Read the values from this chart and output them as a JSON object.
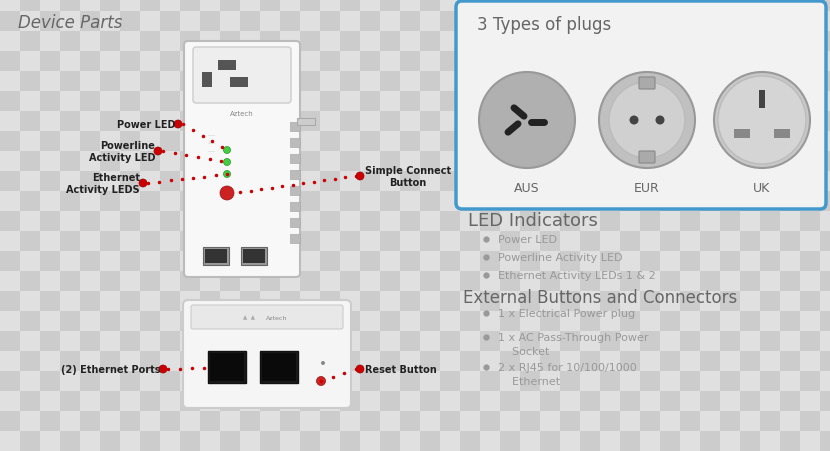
{
  "title": "Device Parts",
  "bg_checker_light": "#e0e0e0",
  "bg_checker_dark": "#cccccc",
  "text_color": "#999999",
  "text_dark": "#666666",
  "text_label": "#222222",
  "red_color": "#cc0000",
  "blue_border": "#4499cc",
  "plugs_title": "3 Types of plugs",
  "plug_labels": [
    "AUS",
    "EUR",
    "UK"
  ],
  "led_title": "LED Indicators",
  "led_bullets": [
    "Power LED",
    "Powerline Activity LED",
    "Ethernet Activity LEDs 1 & 2"
  ],
  "ext_title": "External Buttons and Connectors",
  "ext_bullets_line1": [
    "1 x Electrical Power plug",
    "1 x AC Pass-Through Power",
    "2 x RJ45 for 10/100/1000"
  ],
  "ext_bullets_line2": [
    "",
    "    Socket",
    "    Ethernet"
  ],
  "label_power_led": "Power LED",
  "label_powerline": "Powerline\nActivity LED",
  "label_ethernet": "Ethernet\nActivity LEDS",
  "label_simple": "Simple Connect\nButton",
  "label_eth_ports": "(2) Ethernet Ports",
  "label_reset": "Reset Button",
  "checker_size": 20
}
